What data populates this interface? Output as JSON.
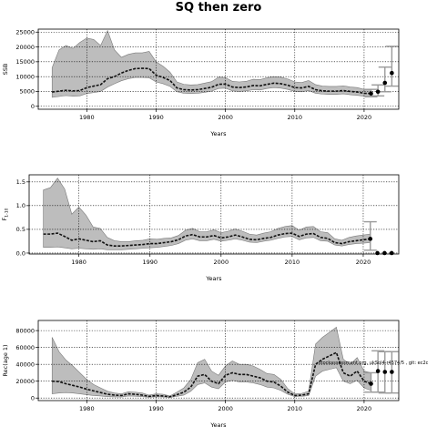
{
  "figure": {
    "title": "SQ then zero"
  },
  "chart_data": [
    {
      "type": "line",
      "xlabel": "Years",
      "ylabel": "SSB",
      "xlim": [
        1973,
        2025
      ],
      "ylim": [
        -1000,
        26000
      ],
      "xticks": [
        1980,
        1990,
        2000,
        2010,
        2020
      ],
      "yticks": [
        0,
        5000,
        10000,
        15000,
        20000,
        25000
      ],
      "ytick_labels": [
        "0",
        "5000",
        "10000",
        "15000",
        "20000",
        "25000"
      ],
      "grid": true,
      "years": [
        1975,
        1976,
        1977,
        1978,
        1979,
        1980,
        1981,
        1982,
        1983,
        1984,
        1985,
        1986,
        1987,
        1988,
        1989,
        1990,
        1991,
        1992,
        1993,
        1994,
        1995,
        1996,
        1997,
        1998,
        1999,
        2000,
        2001,
        2002,
        2003,
        2004,
        2005,
        2006,
        2007,
        2008,
        2009,
        2010,
        2011,
        2012,
        2013,
        2014,
        2015,
        2016,
        2017,
        2018,
        2019,
        2020,
        2021
      ],
      "estimate": [
        4800,
        5100,
        5400,
        5200,
        5300,
        6300,
        6800,
        7300,
        9300,
        10000,
        11200,
        12100,
        12700,
        12800,
        12700,
        10500,
        9700,
        8700,
        6200,
        5600,
        5500,
        5600,
        6000,
        6400,
        7400,
        7500,
        6500,
        6300,
        6500,
        7000,
        6900,
        7400,
        7800,
        7600,
        7100,
        6300,
        6200,
        6700,
        5600,
        5200,
        5100,
        5100,
        5300,
        5000,
        4800,
        4400,
        4300
      ],
      "lower": [
        3000,
        3300,
        3600,
        3400,
        3500,
        4300,
        4600,
        5000,
        6500,
        7600,
        8600,
        9300,
        9700,
        9700,
        9600,
        8200,
        7600,
        6700,
        4900,
        4400,
        4300,
        4400,
        4700,
        5100,
        6000,
        6100,
        5200,
        5000,
        5200,
        5600,
        5500,
        6000,
        6300,
        6100,
        5700,
        5000,
        4900,
        5300,
        4400,
        4100,
        4000,
        4000,
        4200,
        3900,
        3700,
        3400,
        3300
      ],
      "upper": [
        13000,
        19000,
        20500,
        19500,
        21500,
        23000,
        22500,
        20500,
        25500,
        19000,
        16500,
        17500,
        18000,
        18000,
        18500,
        15000,
        13500,
        11500,
        8200,
        7400,
        7200,
        7300,
        7800,
        8300,
        9800,
        9700,
        8400,
        8200,
        8400,
        9100,
        9000,
        9600,
        10000,
        9800,
        9200,
        8200,
        8000,
        8700,
        7300,
        6800,
        6700,
        6700,
        6900,
        6500,
        6300,
        5700,
        5600
      ],
      "projection": {
        "years": [
          2021,
          2022,
          2023,
          2024
        ],
        "values": [
          4300,
          4900,
          7900,
          11200
        ],
        "lower": [
          3200,
          3500,
          4900,
          6800
        ],
        "upper": [
          5700,
          7200,
          13200,
          20200
        ]
      }
    },
    {
      "type": "line",
      "xlabel": "Years",
      "ylabel": "F",
      "ylabel_sub": "1-10",
      "xlim": [
        1973,
        2025
      ],
      "ylim": [
        -0.02,
        1.65
      ],
      "xticks": [
        1980,
        1990,
        2000,
        2010,
        2020
      ],
      "yticks": [
        0,
        0.5,
        1,
        1.5
      ],
      "ytick_labels": [
        "0.0",
        "0.5",
        "1.0",
        "1.5"
      ],
      "grid": true,
      "years": [
        1975,
        1976,
        1977,
        1978,
        1979,
        1980,
        1981,
        1982,
        1983,
        1984,
        1985,
        1986,
        1987,
        1988,
        1989,
        1990,
        1991,
        1992,
        1993,
        1994,
        1995,
        1996,
        1997,
        1998,
        1999,
        2000,
        2001,
        2002,
        2003,
        2004,
        2005,
        2006,
        2007,
        2008,
        2009,
        2010,
        2011,
        2012,
        2013,
        2014,
        2015,
        2016,
        2017,
        2018,
        2019,
        2020,
        2021
      ],
      "estimate": [
        0.4,
        0.4,
        0.42,
        0.35,
        0.27,
        0.3,
        0.27,
        0.24,
        0.26,
        0.17,
        0.15,
        0.15,
        0.16,
        0.17,
        0.18,
        0.2,
        0.2,
        0.22,
        0.24,
        0.28,
        0.36,
        0.39,
        0.34,
        0.34,
        0.37,
        0.32,
        0.34,
        0.38,
        0.34,
        0.29,
        0.28,
        0.31,
        0.33,
        0.38,
        0.41,
        0.42,
        0.35,
        0.4,
        0.41,
        0.33,
        0.31,
        0.22,
        0.2,
        0.24,
        0.26,
        0.28,
        0.3
      ],
      "lower": [
        0.12,
        0.12,
        0.13,
        0.11,
        0.09,
        0.1,
        0.09,
        0.08,
        0.09,
        0.07,
        0.07,
        0.07,
        0.08,
        0.09,
        0.1,
        0.11,
        0.12,
        0.14,
        0.16,
        0.2,
        0.27,
        0.3,
        0.26,
        0.26,
        0.29,
        0.25,
        0.27,
        0.3,
        0.27,
        0.23,
        0.22,
        0.25,
        0.27,
        0.31,
        0.34,
        0.35,
        0.28,
        0.32,
        0.33,
        0.26,
        0.25,
        0.17,
        0.15,
        0.18,
        0.2,
        0.21,
        0.22
      ],
      "upper": [
        1.33,
        1.38,
        1.58,
        1.35,
        0.82,
        0.97,
        0.8,
        0.55,
        0.52,
        0.33,
        0.26,
        0.24,
        0.24,
        0.26,
        0.27,
        0.3,
        0.29,
        0.31,
        0.32,
        0.37,
        0.48,
        0.52,
        0.45,
        0.45,
        0.49,
        0.43,
        0.46,
        0.51,
        0.46,
        0.4,
        0.38,
        0.42,
        0.45,
        0.52,
        0.56,
        0.58,
        0.48,
        0.55,
        0.56,
        0.45,
        0.43,
        0.3,
        0.27,
        0.33,
        0.36,
        0.38,
        0.4
      ],
      "projection": {
        "years": [
          2021,
          2022,
          2023,
          2024
        ],
        "values": [
          0.3,
          0.0,
          0.0,
          0.0
        ],
        "lower": [
          0.06,
          null,
          null,
          null
        ],
        "upper": [
          0.66,
          null,
          null,
          null
        ]
      }
    },
    {
      "type": "line",
      "xlabel": "Years",
      "ylabel": "Rec(age 1)",
      "xlim": [
        1973,
        2025
      ],
      "ylim": [
        -3000,
        92000
      ],
      "xticks": [
        1980,
        1990,
        2000,
        2010,
        2020
      ],
      "yticks": [
        0,
        20000,
        40000,
        60000,
        80000
      ],
      "ytick_labels": [
        "0",
        "20000",
        "40000",
        "60000",
        "80000"
      ],
      "grid": true,
      "annotation": "stockassessment.org, ukSol4-r4574/5 , git: ec2c",
      "years": [
        1975,
        1976,
        1977,
        1978,
        1979,
        1980,
        1981,
        1982,
        1983,
        1984,
        1985,
        1986,
        1987,
        1988,
        1989,
        1990,
        1991,
        1992,
        1993,
        1994,
        1995,
        1996,
        1997,
        1998,
        1999,
        2000,
        2001,
        2002,
        2003,
        2004,
        2005,
        2006,
        2007,
        2008,
        2009,
        2010,
        2011,
        2012,
        2013,
        2014,
        2015,
        2016,
        2017,
        2018,
        2019,
        2020,
        2021
      ],
      "estimate": [
        20000,
        19500,
        17000,
        15000,
        13000,
        10500,
        8500,
        6500,
        4500,
        3500,
        3000,
        5000,
        4500,
        3500,
        2000,
        3000,
        2500,
        1500,
        4000,
        7000,
        13000,
        26000,
        28000,
        20000,
        17000,
        27000,
        30000,
        28000,
        28000,
        26000,
        24000,
        20000,
        19000,
        14000,
        7000,
        3000,
        3500,
        5000,
        40000,
        46000,
        50000,
        54000,
        30000,
        26000,
        32000,
        20000,
        17000
      ],
      "lower": [
        5000,
        6000,
        6500,
        6000,
        5000,
        4000,
        3000,
        2500,
        1700,
        1400,
        1300,
        2500,
        2200,
        1700,
        1000,
        1500,
        1300,
        800,
        2000,
        3500,
        8000,
        16000,
        18000,
        13000,
        11000,
        19000,
        21000,
        19000,
        19000,
        18000,
        16000,
        13000,
        12000,
        9000,
        4500,
        1800,
        2000,
        3000,
        26000,
        32000,
        34000,
        36000,
        20000,
        17000,
        21000,
        12000,
        9000
      ],
      "upper": [
        72000,
        55000,
        45000,
        38000,
        30000,
        22000,
        16000,
        12000,
        8000,
        6000,
        5000,
        7500,
        7000,
        6000,
        3500,
        5000,
        4500,
        2500,
        7000,
        12000,
        22000,
        42000,
        46000,
        32000,
        27000,
        38000,
        44000,
        40000,
        40000,
        38000,
        34000,
        29000,
        28000,
        22000,
        11000,
        5000,
        5500,
        8000,
        64000,
        72000,
        78000,
        84000,
        46000,
        40000,
        48000,
        32000,
        30000
      ],
      "projection": {
        "years": [
          2021,
          2022,
          2023,
          2024
        ],
        "values": [
          17000,
          32000,
          31000,
          31000
        ],
        "lower": [
          7000,
          7000,
          6000,
          6000
        ],
        "upper": [
          30000,
          56000,
          55000,
          55000
        ]
      }
    }
  ]
}
